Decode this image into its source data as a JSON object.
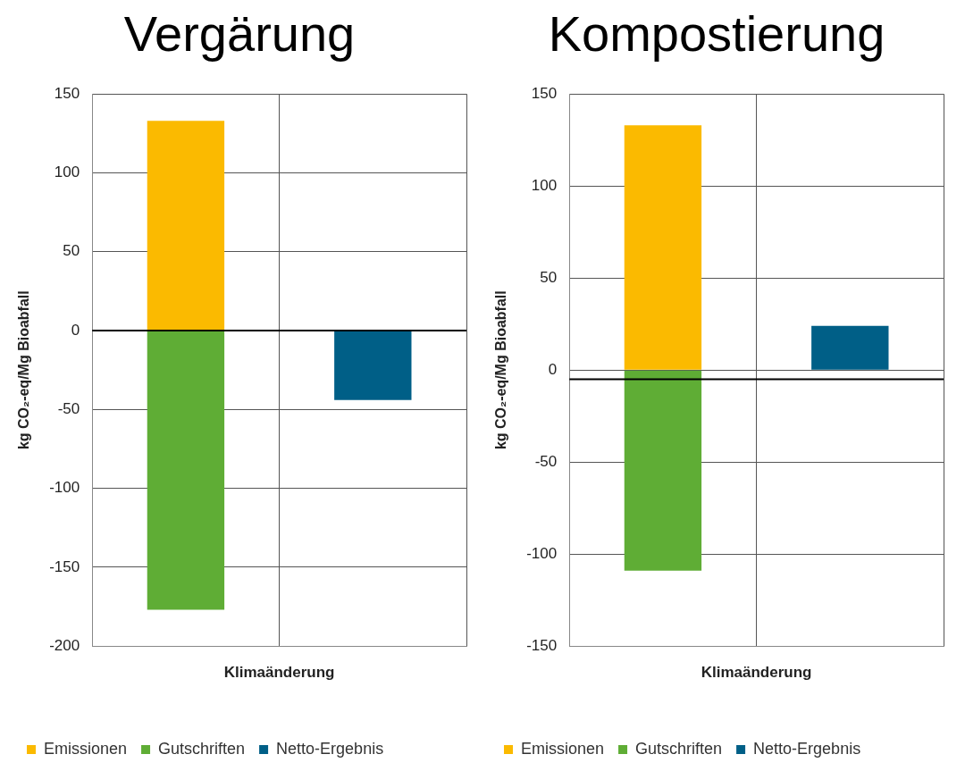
{
  "chart_data": [
    {
      "type": "bar",
      "title": "Vergärung",
      "xlabel": "Klimaänderung",
      "ylabel": "kg CO₂-eq/Mg Bioabfall",
      "categories": [
        null,
        null
      ],
      "stacked": true,
      "series": [
        {
          "name": "Emissionen",
          "color": "#fbba00",
          "values": [
            133,
            null
          ]
        },
        {
          "name": "Gutschriften",
          "color": "#5fad35",
          "values": [
            -177,
            null
          ]
        },
        {
          "name": "Netto-Ergebnis",
          "color": "#005f87",
          "values": [
            null,
            -44
          ]
        }
      ],
      "ylim": [
        -200,
        150
      ],
      "yticks": [
        -200,
        -150,
        -100,
        -50,
        0,
        50,
        100,
        150
      ],
      "grid": true,
      "legend": "bottom",
      "ref_lines": [
        {
          "axis": "y",
          "value": 0,
          "color": "#000000"
        }
      ]
    },
    {
      "type": "bar",
      "title": "Kompostierung",
      "xlabel": "Klimaänderung",
      "ylabel": "kg CO₂-eq/Mg Bioabfall",
      "categories": [
        null,
        null
      ],
      "stacked": true,
      "series": [
        {
          "name": "Emissionen",
          "color": "#fbba00",
          "values": [
            133,
            null
          ]
        },
        {
          "name": "Gutschriften",
          "color": "#5fad35",
          "values": [
            -109,
            null
          ]
        },
        {
          "name": "Netto-Ergebnis",
          "color": "#005f87",
          "values": [
            null,
            24
          ]
        }
      ],
      "ylim": [
        -150,
        150
      ],
      "yticks": [
        -150,
        -100,
        -50,
        0,
        50,
        100,
        150
      ],
      "grid": true,
      "legend": "bottom",
      "ref_lines": [
        {
          "axis": "y",
          "value": -5,
          "color": "#000000"
        }
      ]
    }
  ]
}
